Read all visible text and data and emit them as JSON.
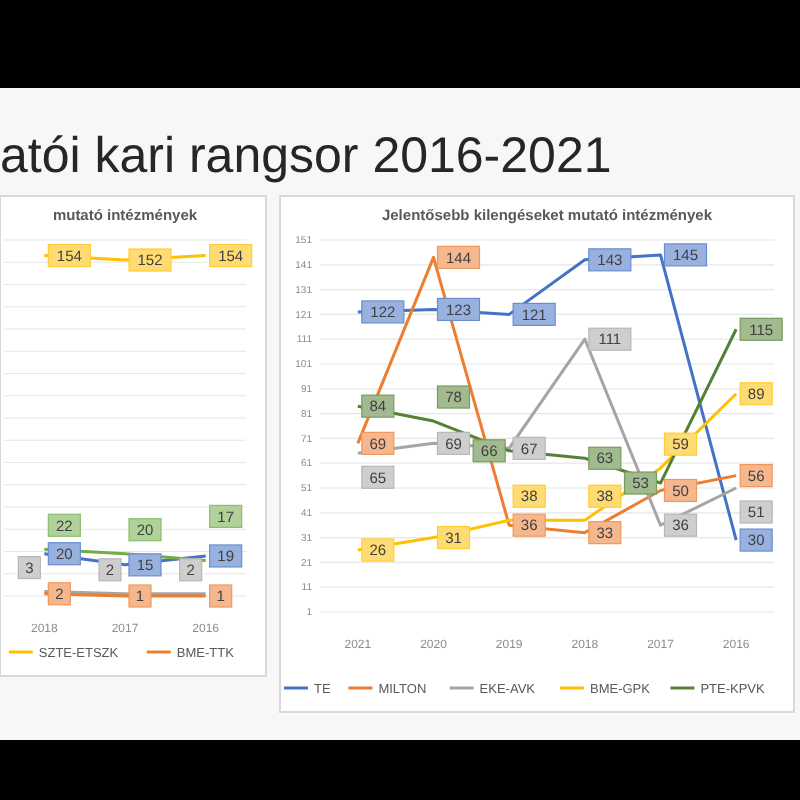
{
  "chart_data": [
    {
      "type": "line",
      "title": "mutató intézmények",
      "annotations": [
        "atói kari rangsor 2016-2021"
      ],
      "categories": [
        "2018",
        "2017",
        "2016"
      ],
      "ylim": [
        1,
        161
      ],
      "yticks": [
        {
          "value": 1,
          "label": null
        },
        {
          "value": 11,
          "label": null
        },
        {
          "value": 21,
          "label": null
        },
        {
          "value": 31,
          "label": null
        },
        {
          "value": 41,
          "label": null
        },
        {
          "value": 51,
          "label": null
        },
        {
          "value": 61,
          "label": null
        },
        {
          "value": 71,
          "label": null
        },
        {
          "value": 81,
          "label": null
        },
        {
          "value": 91,
          "label": null
        },
        {
          "value": 101,
          "label": null
        },
        {
          "value": 111,
          "label": null
        },
        {
          "value": 121,
          "label": null
        },
        {
          "value": 131,
          "label": null
        },
        {
          "value": 141,
          "label": null
        },
        {
          "value": 151,
          "label": null
        },
        {
          "value": 161,
          "label": null
        }
      ],
      "tick_labels": "x",
      "grid": "y",
      "data_labels": true,
      "legend": "bottom",
      "marker": "none",
      "series": [
        {
          "color": "#4472c4",
          "values": [
            20,
            15,
            19
          ]
        },
        {
          "color": "#a5a5a5",
          "values": [
            3,
            2,
            2
          ]
        },
        {
          "name": "SZTE-ETSZK",
          "color": "#ffc000",
          "values": [
            154,
            152,
            154
          ]
        },
        {
          "color": "#70ad47",
          "values": [
            22,
            20,
            17
          ]
        },
        {
          "name": "BME-TTK",
          "color": "#ed7d31",
          "values": [
            2,
            1,
            1
          ]
        }
      ]
    },
    {
      "type": "line",
      "title": "Jelentősebb kilengéseket mutató intézmények",
      "categories": [
        "2021",
        "2020",
        "2019",
        "2018",
        "2017",
        "2016"
      ],
      "ylim": [
        1,
        151
      ],
      "yticks": [
        1,
        11,
        21,
        31,
        41,
        51,
        61,
        71,
        81,
        91,
        101,
        111,
        121,
        131,
        141,
        151
      ],
      "grid": "y",
      "data_labels": true,
      "legend": "bottom",
      "marker": "none",
      "series": [
        {
          "name": "TE",
          "color": "#4472c4",
          "values": [
            122,
            123,
            121,
            143,
            145,
            30
          ]
        },
        {
          "name": "MILTON",
          "color": "#ed7d31",
          "values": [
            69,
            144,
            36,
            33,
            50,
            56
          ]
        },
        {
          "name": "EKE-AVK",
          "color": "#a5a5a5",
          "values": [
            65,
            69,
            67,
            111,
            36,
            51
          ]
        },
        {
          "name": "BME-GPK",
          "color": "#ffc000",
          "values": [
            26,
            31,
            38,
            38,
            59,
            89
          ]
        },
        {
          "name": "PTE-KPVK",
          "color": "#548235",
          "values": [
            84,
            78,
            66,
            63,
            53,
            115
          ]
        }
      ]
    }
  ]
}
